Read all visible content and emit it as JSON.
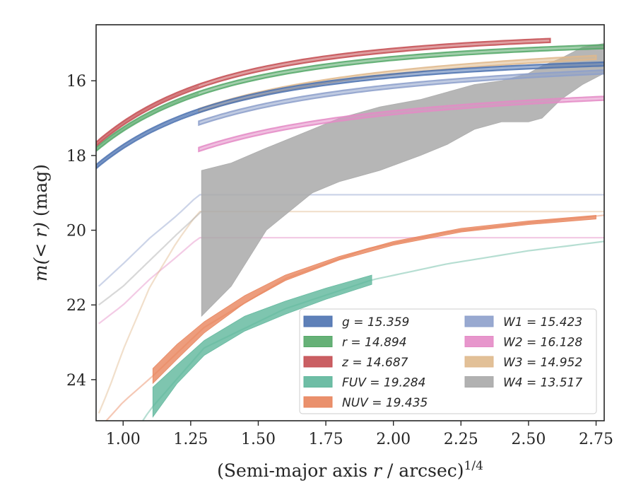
{
  "chart_data": {
    "type": "area",
    "title": "",
    "xlabel": "(Semi-major axis r / arcsec)^1/4",
    "ylabel": "m(< r) (mag)",
    "xlabel_parts": {
      "prefix": "(Semi-major axis ",
      "var": "r",
      "suffix": " / arcsec)",
      "exp": "1/4"
    },
    "ylabel_parts": {
      "var": "m(< r)",
      "suffix": " (mag)"
    },
    "xlim": [
      0.9,
      2.78
    ],
    "ylim": [
      25.1,
      14.5
    ],
    "y_inverted": true,
    "grid": false,
    "legend_position": "lower-right",
    "x_ticks": [
      1.0,
      1.25,
      1.5,
      1.75,
      2.0,
      2.25,
      2.5,
      2.75
    ],
    "x_tick_labels": [
      "1.00",
      "1.25",
      "1.50",
      "1.75",
      "2.00",
      "2.25",
      "2.50",
      "2.75"
    ],
    "y_ticks": [
      16,
      18,
      20,
      22,
      24
    ],
    "y_tick_labels": [
      "16",
      "18",
      "20",
      "22",
      "24"
    ],
    "legend_columns": [
      [
        {
          "label": "g = 15.359",
          "series": "g"
        },
        {
          "label": "r = 14.894",
          "series": "r"
        },
        {
          "label": "z = 14.687",
          "series": "z"
        },
        {
          "label": "FUV = 19.284",
          "series": "FUV"
        },
        {
          "label": "NUV = 19.435",
          "series": "NUV"
        }
      ],
      [
        {
          "label": "W1 = 15.423",
          "series": "W1"
        },
        {
          "label": "W2 = 16.128",
          "series": "W2"
        },
        {
          "label": "W3 = 14.952",
          "series": "W3"
        },
        {
          "label": "W4 = 13.517",
          "series": "W4"
        }
      ]
    ],
    "series": [
      {
        "name": "g",
        "legend_label": "g = 15.359",
        "color": "#4c72b0",
        "kind": "band",
        "x_start": 0.9,
        "x_end": 2.78,
        "model": {
          "mtot": 15.359,
          "k": 1.55,
          "c": 0.85
        },
        "halfwidth": 0.05
      },
      {
        "name": "r",
        "legend_label": "r = 14.894",
        "color": "#55a868",
        "kind": "band",
        "x_start": 0.9,
        "x_end": 2.78,
        "model": {
          "mtot": 14.894,
          "k": 1.55,
          "c": 0.85
        },
        "halfwidth": 0.05
      },
      {
        "name": "z",
        "legend_label": "z = 14.687",
        "color": "#c44e52",
        "kind": "band",
        "x_start": 0.9,
        "x_end": 2.58,
        "model": {
          "mtot": 14.687,
          "k": 1.58,
          "c": 0.82
        },
        "halfwidth": 0.05
      },
      {
        "name": "FUV",
        "legend_label": "FUV = 19.284",
        "color": "#5eb69b",
        "kind": "band",
        "x_start": 1.11,
        "x_end": 1.92,
        "x": [
          1.11,
          1.2,
          1.3,
          1.45,
          1.6,
          1.75,
          1.92
        ],
        "y_upper": [
          24.2,
          23.6,
          22.95,
          22.3,
          21.9,
          21.55,
          21.2
        ],
        "y_lower": [
          25.0,
          24.1,
          23.35,
          22.7,
          22.25,
          21.85,
          21.45
        ]
      },
      {
        "name": "NUV",
        "legend_label": "NUV = 19.435",
        "color": "#e8845c",
        "kind": "band",
        "x_start": 1.11,
        "x_end": 2.75,
        "x": [
          1.11,
          1.2,
          1.3,
          1.45,
          1.6,
          1.8,
          2.0,
          2.25,
          2.5,
          2.75
        ],
        "y_upper": [
          23.7,
          23.05,
          22.45,
          21.75,
          21.2,
          20.7,
          20.3,
          19.95,
          19.75,
          19.6
        ],
        "y_lower": [
          24.1,
          23.45,
          22.75,
          21.95,
          21.35,
          20.8,
          20.4,
          20.05,
          19.85,
          19.7
        ]
      },
      {
        "name": "W1",
        "legend_label": "W1 = 15.423",
        "color": "#8da0cb",
        "kind": "band",
        "x_start": 1.28,
        "x_end": 2.78,
        "model": {
          "mtot": 15.423,
          "k": 1.7,
          "c": 1.1
        },
        "halfwidth": 0.05
      },
      {
        "name": "W2",
        "legend_label": "W2 = 16.128",
        "color": "#e48bc6",
        "kind": "band",
        "x_start": 1.28,
        "x_end": 2.78,
        "model": {
          "mtot": 16.128,
          "k": 1.7,
          "c": 1.1
        },
        "halfwidth": 0.05
      },
      {
        "name": "W3",
        "legend_label": "W3 = 14.952",
        "color": "#dfb98c",
        "kind": "band",
        "x_start": 1.28,
        "x_end": 2.75,
        "model": {
          "mtot": 14.952,
          "k": 1.8,
          "c": 1.2
        },
        "halfwidth": 0.05
      },
      {
        "name": "W4",
        "legend_label": "W4 = 13.517",
        "color": "#a9a9a9",
        "kind": "band",
        "x_start": 1.29,
        "x_end": 2.78,
        "x": [
          1.29,
          1.4,
          1.53,
          1.7,
          1.8,
          1.95,
          2.1,
          2.2,
          2.3,
          2.4,
          2.45,
          2.5,
          2.55,
          2.62,
          2.7,
          2.78
        ],
        "y_upper": [
          18.4,
          18.2,
          17.8,
          17.3,
          17.0,
          16.7,
          16.5,
          16.3,
          16.1,
          16.0,
          15.9,
          15.8,
          15.6,
          15.4,
          15.1,
          15.0
        ],
        "y_lower": [
          22.3,
          21.5,
          20.0,
          19.0,
          18.7,
          18.4,
          18.0,
          17.7,
          17.3,
          17.1,
          17.1,
          17.1,
          17.0,
          16.5,
          16.1,
          15.8
        ]
      }
    ],
    "extrapolations": [
      {
        "series": "g",
        "x_start": 0.9,
        "x_end": 1.28
      },
      {
        "series": "r",
        "x_start": 0.9,
        "x_end": 1.28
      },
      {
        "series": "z",
        "x_start": 0.9,
        "x_end": 1.28
      },
      {
        "series": "FUV",
        "x_start": 0.9,
        "x_end": 2.78,
        "x": [
          0.9,
          1.0,
          1.1,
          1.3,
          1.6,
          1.92,
          2.2,
          2.5,
          2.78
        ],
        "y": [
          26.6,
          25.9,
          24.8,
          23.15,
          22.1,
          21.33,
          20.9,
          20.55,
          20.3
        ]
      },
      {
        "series": "NUV",
        "x_start": 0.9,
        "x_end": 2.78,
        "x": [
          0.9,
          1.0,
          1.11,
          1.3,
          1.6,
          1.9,
          2.2,
          2.5,
          2.78
        ],
        "y": [
          25.4,
          24.6,
          23.9,
          22.6,
          21.3,
          20.5,
          20.05,
          19.8,
          19.6
        ]
      },
      {
        "series": "W1",
        "x_start": 0.91,
        "x_end": 2.78,
        "x": [
          0.91,
          1.0,
          1.1,
          1.2,
          1.28
        ],
        "y": [
          21.5,
          20.9,
          20.2,
          19.6,
          19.05
        ]
      },
      {
        "series": "W2",
        "x_start": 0.91,
        "x_end": 2.78,
        "x": [
          0.91,
          1.0,
          1.1,
          1.2,
          1.28
        ],
        "y": [
          22.5,
          22.0,
          21.3,
          20.7,
          20.2
        ]
      },
      {
        "series": "W3",
        "x_start": 0.91,
        "x_end": 2.78,
        "x": [
          0.91,
          0.95,
          1.0,
          1.1,
          1.2,
          1.28
        ],
        "y": [
          24.9,
          24.2,
          23.2,
          21.5,
          20.3,
          19.5
        ]
      },
      {
        "series": "W4",
        "x_start": 0.91,
        "x_end": 1.29,
        "x": [
          0.91,
          1.0,
          1.1,
          1.2,
          1.29
        ],
        "y": [
          22.0,
          21.5,
          20.8,
          20.1,
          19.5
        ]
      }
    ]
  }
}
